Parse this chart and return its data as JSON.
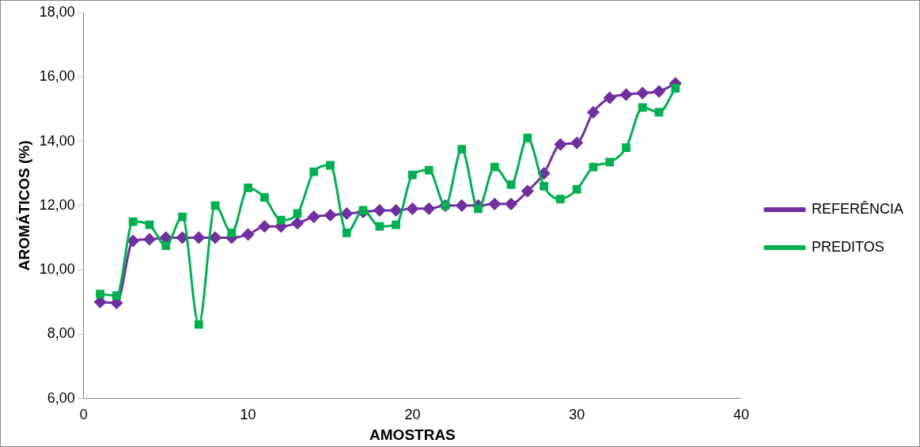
{
  "chart_data": {
    "type": "line",
    "xlabel": "AMOSTRAS",
    "ylabel": "AROMÁTICOS (%)",
    "x": [
      1,
      2,
      3,
      4,
      5,
      6,
      7,
      8,
      9,
      10,
      11,
      12,
      13,
      14,
      15,
      16,
      17,
      18,
      19,
      20,
      21,
      22,
      23,
      24,
      25,
      26,
      27,
      28,
      29,
      30,
      31,
      32,
      33,
      34,
      35,
      36
    ],
    "xlim": [
      0,
      40
    ],
    "xticks": [
      0,
      10,
      20,
      30,
      40
    ],
    "ylim": [
      6,
      18
    ],
    "yticks": [
      {
        "value": 6,
        "label": "6,00"
      },
      {
        "value": 8,
        "label": "8,00"
      },
      {
        "value": 10,
        "label": "10,00"
      },
      {
        "value": 12,
        "label": "12,00"
      },
      {
        "value": 14,
        "label": "14,00"
      },
      {
        "value": 16,
        "label": "16,00"
      },
      {
        "value": 18,
        "label": "18,00"
      }
    ],
    "grid": false,
    "legend": "right",
    "series": [
      {
        "name": "REFERÊNCIA",
        "color": "#7030a0",
        "marker": "diamond",
        "values": [
          9.0,
          8.97,
          10.9,
          10.95,
          11.0,
          11.0,
          11.0,
          11.0,
          11.0,
          11.1,
          11.35,
          11.35,
          11.45,
          11.65,
          11.7,
          11.75,
          11.8,
          11.85,
          11.85,
          11.9,
          11.9,
          12.0,
          12.0,
          12.0,
          12.05,
          12.05,
          12.45,
          13.0,
          13.9,
          13.95,
          14.9,
          15.35,
          15.45,
          15.5,
          15.55,
          15.8
        ]
      },
      {
        "name": "PREDITOS",
        "color": "#00b050",
        "marker": "square",
        "values": [
          9.25,
          9.2,
          11.5,
          11.4,
          10.75,
          11.65,
          8.3,
          12.0,
          11.15,
          12.55,
          12.25,
          11.55,
          11.75,
          13.05,
          13.25,
          11.15,
          11.85,
          11.35,
          11.4,
          12.95,
          13.1,
          12.0,
          13.75,
          11.9,
          13.2,
          12.65,
          14.1,
          12.6,
          12.2,
          12.5,
          13.2,
          13.35,
          13.8,
          15.05,
          14.9,
          15.65
        ]
      }
    ]
  }
}
